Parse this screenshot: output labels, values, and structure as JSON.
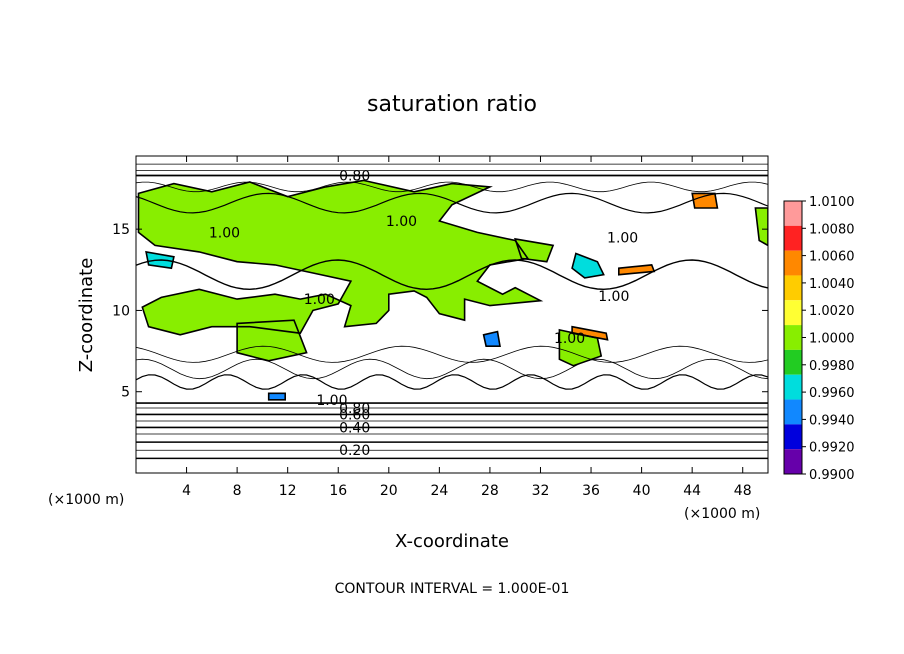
{
  "chart_data": {
    "type": "heatmap",
    "title": "saturation ratio",
    "xlabel": "X-coordinate",
    "ylabel": "Z-coordinate",
    "x_unit": "(×1000 m)",
    "y_unit": "(×1000 m)",
    "xlim": [
      0,
      50
    ],
    "ylim": [
      0,
      19.5
    ],
    "x_ticks": [
      4,
      8,
      12,
      16,
      20,
      24,
      28,
      32,
      36,
      40,
      44,
      48
    ],
    "y_ticks": [
      5,
      10,
      15
    ],
    "footer": "CONTOUR INTERVAL = 1.000E-01",
    "contour_labels": [
      {
        "text": "0.80",
        "x": 17.3,
        "z": 18.3
      },
      {
        "text": "1.00",
        "x": 21.0,
        "z": 15.5
      },
      {
        "text": "1.00",
        "x": 7.0,
        "z": 14.8
      },
      {
        "text": "1.00",
        "x": 38.5,
        "z": 14.5
      },
      {
        "text": "1.00",
        "x": 37.8,
        "z": 10.9
      },
      {
        "text": "1.00",
        "x": 14.5,
        "z": 10.7
      },
      {
        "text": "1.00",
        "x": 34.3,
        "z": 8.3
      },
      {
        "text": "1.00",
        "x": 15.5,
        "z": 4.5
      },
      {
        "text": "0.80",
        "x": 17.3,
        "z": 4.0
      },
      {
        "text": "0.60",
        "x": 17.3,
        "z": 3.6
      },
      {
        "text": "0.40",
        "x": 17.3,
        "z": 2.8
      },
      {
        "text": "0.20",
        "x": 17.3,
        "z": 1.4
      }
    ],
    "colorbar": {
      "labels": [
        "1.0100",
        "1.0080",
        "1.0060",
        "1.0040",
        "1.0020",
        "1.0000",
        "0.9980",
        "0.9960",
        "0.9940",
        "0.9920",
        "0.9900"
      ],
      "colors": [
        "#ff9a9a",
        "#ff2222",
        "#ff8800",
        "#ffcc00",
        "#ffff33",
        "#88ee00",
        "#22cc22",
        "#00dddd",
        "#1188ff",
        "#0000dd",
        "#6600aa"
      ]
    },
    "regions": [
      {
        "value": 1.0,
        "polygon": [
          [
            0.2,
            17.2
          ],
          [
            3,
            17.8
          ],
          [
            6,
            17.3
          ],
          [
            9,
            17.9
          ],
          [
            12,
            17.0
          ],
          [
            15,
            17.6
          ],
          [
            18,
            18.0
          ],
          [
            22,
            17.3
          ],
          [
            25,
            17.8
          ],
          [
            28,
            17.6
          ],
          [
            25,
            16.5
          ],
          [
            24,
            15.5
          ],
          [
            27,
            14.8
          ],
          [
            30,
            14.3
          ],
          [
            31,
            13.2
          ],
          [
            28,
            12.8
          ],
          [
            27,
            11.8
          ],
          [
            29,
            11.0
          ],
          [
            30,
            11.4
          ],
          [
            32,
            10.6
          ],
          [
            28,
            10.3
          ],
          [
            26,
            10.7
          ],
          [
            26,
            9.4
          ],
          [
            24,
            9.8
          ],
          [
            23,
            10.8
          ],
          [
            22,
            11.2
          ],
          [
            20,
            11.0
          ],
          [
            20,
            10.0
          ],
          [
            19,
            9.2
          ],
          [
            16.5,
            9.0
          ],
          [
            17,
            10.3
          ],
          [
            15,
            11.0
          ],
          [
            13,
            10.7
          ],
          [
            11,
            11.0
          ],
          [
            8,
            10.7
          ],
          [
            5,
            11.3
          ],
          [
            2,
            10.8
          ],
          [
            0.5,
            10.2
          ],
          [
            1,
            9.0
          ],
          [
            3.5,
            8.5
          ],
          [
            6,
            9.0
          ],
          [
            9,
            9.0
          ],
          [
            11,
            8.8
          ],
          [
            13,
            8.6
          ],
          [
            14,
            10.0
          ],
          [
            16,
            10.4
          ],
          [
            17,
            11.8
          ],
          [
            14,
            12.3
          ],
          [
            11,
            12.8
          ],
          [
            8,
            13.0
          ],
          [
            5,
            13.6
          ],
          [
            1.5,
            14.0
          ],
          [
            0.2,
            14.8
          ]
        ]
      },
      {
        "value": 1.0,
        "polygon": [
          [
            8,
            9.2
          ],
          [
            12.5,
            9.4
          ],
          [
            13.5,
            7.4
          ],
          [
            10.5,
            6.9
          ],
          [
            8,
            7.4
          ]
        ]
      },
      {
        "value": 1.0,
        "polygon": [
          [
            33.5,
            8.8
          ],
          [
            36.5,
            8.3
          ],
          [
            36.8,
            7.2
          ],
          [
            34.6,
            6.6
          ],
          [
            33.5,
            7.0
          ]
        ]
      },
      {
        "value": 1.0,
        "polygon": [
          [
            49,
            16.3
          ],
          [
            50,
            16.3
          ],
          [
            50,
            14.0
          ],
          [
            49.3,
            14.3
          ]
        ]
      },
      {
        "value": 1.0,
        "polygon": [
          [
            30,
            14.4
          ],
          [
            33,
            14.0
          ],
          [
            32.5,
            13.0
          ],
          [
            30.5,
            13.2
          ]
        ]
      },
      {
        "value": 0.996,
        "polygon": [
          [
            0.8,
            13.6
          ],
          [
            3,
            13.3
          ],
          [
            2.8,
            12.6
          ],
          [
            1.0,
            12.8
          ]
        ]
      },
      {
        "value": 0.996,
        "polygon": [
          [
            34.8,
            13.5
          ],
          [
            36.5,
            13.0
          ],
          [
            37,
            12.2
          ],
          [
            35.5,
            12.0
          ],
          [
            34.5,
            12.6
          ]
        ]
      },
      {
        "value": 0.994,
        "polygon": [
          [
            27.5,
            8.5
          ],
          [
            28.6,
            8.7
          ],
          [
            28.8,
            7.8
          ],
          [
            27.7,
            7.8
          ]
        ]
      },
      {
        "value": 0.994,
        "polygon": [
          [
            10.5,
            4.9
          ],
          [
            11.8,
            4.9
          ],
          [
            11.8,
            4.5
          ],
          [
            10.5,
            4.5
          ]
        ]
      },
      {
        "value": 1.006,
        "polygon": [
          [
            44,
            17.2
          ],
          [
            45.8,
            17.2
          ],
          [
            46,
            16.3
          ],
          [
            44.2,
            16.3
          ]
        ]
      },
      {
        "value": 1.006,
        "polygon": [
          [
            34.5,
            9.0
          ],
          [
            37.2,
            8.6
          ],
          [
            37.3,
            8.2
          ],
          [
            34.5,
            8.6
          ]
        ]
      },
      {
        "value": 1.006,
        "polygon": [
          [
            38.2,
            12.6
          ],
          [
            40.8,
            12.8
          ],
          [
            41,
            12.4
          ],
          [
            38.2,
            12.2
          ]
        ]
      }
    ],
    "contour_levels": [
      0.2,
      0.4,
      0.6,
      0.8,
      1.0
    ]
  }
}
